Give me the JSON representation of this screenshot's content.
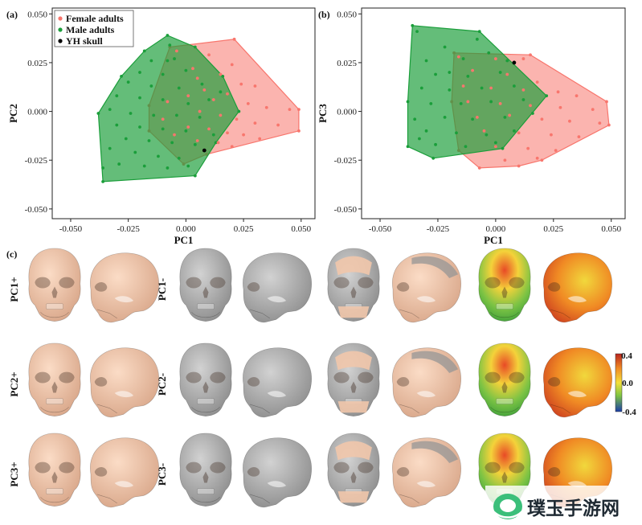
{
  "chart_data": [
    {
      "panel": "(a)",
      "type": "scatter",
      "xlabel": "PC1",
      "ylabel": "PC2",
      "xlim": [
        -0.058,
        0.056
      ],
      "ylim": [
        -0.055,
        0.053
      ],
      "xticks": [
        "-0.050",
        "-0.025",
        "0.000",
        "0.025",
        "0.050"
      ],
      "xtick_values": [
        -0.05,
        -0.025,
        0,
        0.025,
        0.05
      ],
      "yticks": [
        "0.050",
        "0.025",
        "0.000",
        "-0.025",
        "-0.050"
      ],
      "ytick_values": [
        0.05,
        0.025,
        0,
        -0.025,
        -0.05
      ],
      "grid": false,
      "legend": {
        "placement": "top-left",
        "entries": [
          {
            "label": "Female adults",
            "color": "#f8766d"
          },
          {
            "label": "Male adults",
            "color": "#1a9e3a"
          },
          {
            "label": "YH skull",
            "color": "#000000"
          }
        ]
      },
      "series": [
        {
          "group": "female",
          "color": "#f8766d",
          "hull": [
            [
              -0.007,
              0.033
            ],
            [
              0.021,
              0.037
            ],
            [
              0.049,
              0.001
            ],
            [
              0.049,
              -0.01
            ],
            [
              0.009,
              -0.022
            ],
            [
              -0.001,
              -0.027
            ],
            [
              -0.016,
              -0.01
            ],
            [
              -0.016,
              0.003
            ]
          ],
          "points": [
            [
              -0.004,
              0.031
            ],
            [
              0.01,
              0.029
            ],
            [
              0.02,
              0.024
            ],
            [
              0.015,
              0.019
            ],
            [
              0.005,
              0.017
            ],
            [
              0.024,
              0.014
            ],
            [
              0.03,
              0.013
            ],
            [
              0.008,
              0.011
            ],
            [
              0.018,
              0.009
            ],
            [
              0.001,
              0.008
            ],
            [
              0.012,
              0.006
            ],
            [
              0.027,
              0.004
            ],
            [
              0.035,
              0.002
            ],
            [
              0.045,
              0.001
            ],
            [
              0.006,
              0.0
            ],
            [
              0.015,
              -0.002
            ],
            [
              0.022,
              -0.004
            ],
            [
              0.03,
              -0.006
            ],
            [
              0.04,
              -0.007
            ],
            [
              0.001,
              -0.008
            ],
            [
              0.01,
              -0.009
            ],
            [
              0.018,
              -0.011
            ],
            [
              0.025,
              -0.012
            ],
            [
              0.005,
              -0.015
            ],
            [
              0.014,
              -0.016
            ],
            [
              0.02,
              -0.018
            ],
            [
              -0.005,
              -0.012
            ],
            [
              -0.01,
              -0.004
            ],
            [
              -0.008,
              0.005
            ],
            [
              0.003,
              0.022
            ],
            [
              0.032,
              -0.014
            ]
          ]
        },
        {
          "group": "male",
          "color": "#1a9e3a",
          "hull": [
            [
              -0.008,
              0.039
            ],
            [
              0.004,
              0.033
            ],
            [
              0.016,
              0.018
            ],
            [
              0.023,
              0.0
            ],
            [
              0.013,
              -0.016
            ],
            [
              0.004,
              -0.033
            ],
            [
              -0.036,
              -0.036
            ],
            [
              -0.038,
              -0.001
            ],
            [
              -0.028,
              0.018
            ],
            [
              -0.018,
              0.031
            ]
          ],
          "points": [
            [
              -0.007,
              0.034
            ],
            [
              -0.015,
              0.026
            ],
            [
              -0.005,
              0.027
            ],
            [
              -0.02,
              0.02
            ],
            [
              -0.01,
              0.019
            ],
            [
              0.0,
              0.021
            ],
            [
              -0.025,
              0.015
            ],
            [
              -0.015,
              0.013
            ],
            [
              -0.003,
              0.012
            ],
            [
              0.007,
              0.014
            ],
            [
              -0.03,
              0.008
            ],
            [
              -0.02,
              0.007
            ],
            [
              -0.01,
              0.006
            ],
            [
              0.001,
              0.004
            ],
            [
              0.01,
              0.006
            ],
            [
              -0.033,
              0.001
            ],
            [
              -0.024,
              -0.001
            ],
            [
              -0.014,
              -0.002
            ],
            [
              -0.004,
              -0.002
            ],
            [
              0.006,
              -0.003
            ],
            [
              -0.03,
              -0.007
            ],
            [
              -0.02,
              -0.008
            ],
            [
              -0.01,
              -0.009
            ],
            [
              0.0,
              -0.01
            ],
            [
              -0.026,
              -0.014
            ],
            [
              -0.016,
              -0.015
            ],
            [
              -0.006,
              -0.016
            ],
            [
              0.004,
              -0.017
            ],
            [
              -0.033,
              -0.019
            ],
            [
              -0.022,
              -0.021
            ],
            [
              -0.012,
              -0.023
            ],
            [
              -0.003,
              -0.024
            ],
            [
              -0.029,
              -0.027
            ],
            [
              -0.018,
              -0.028
            ],
            [
              -0.008,
              -0.029
            ],
            [
              0.001,
              -0.028
            ],
            [
              -0.036,
              -0.029
            ],
            [
              0.012,
              -0.012
            ],
            [
              0.015,
              0.01
            ],
            [
              -0.008,
              0.026
            ]
          ]
        },
        {
          "group": "yh",
          "color": "#000000",
          "points": [
            [
              0.008,
              -0.02
            ]
          ]
        }
      ]
    },
    {
      "panel": "(b)",
      "type": "scatter",
      "xlabel": "PC1",
      "ylabel": "PC3",
      "xlim": [
        -0.058,
        0.056
      ],
      "ylim": [
        -0.055,
        0.053
      ],
      "xticks": [
        "-0.050",
        "-0.025",
        "0.000",
        "0.025",
        "0.050"
      ],
      "xtick_values": [
        -0.05,
        -0.025,
        0,
        0.025,
        0.05
      ],
      "yticks": [
        "0.050",
        "0.025",
        "0.000",
        "-0.025",
        "-0.050"
      ],
      "ytick_values": [
        0.05,
        0.025,
        0,
        -0.025,
        -0.05
      ],
      "grid": false,
      "series": [
        {
          "group": "female",
          "color": "#f8766d",
          "hull": [
            [
              -0.018,
              0.03
            ],
            [
              0.015,
              0.029
            ],
            [
              0.048,
              0.005
            ],
            [
              0.049,
              -0.007
            ],
            [
              0.02,
              -0.025
            ],
            [
              0.01,
              -0.028
            ],
            [
              -0.007,
              -0.029
            ],
            [
              -0.016,
              -0.02
            ],
            [
              -0.019,
              0.005
            ]
          ],
          "points": [
            [
              -0.016,
              0.028
            ],
            [
              0.0,
              0.027
            ],
            [
              0.012,
              0.027
            ],
            [
              -0.01,
              0.021
            ],
            [
              0.005,
              0.019
            ],
            [
              0.018,
              0.015
            ],
            [
              -0.014,
              0.013
            ],
            [
              -0.002,
              0.012
            ],
            [
              0.012,
              0.011
            ],
            [
              0.027,
              0.01
            ],
            [
              0.035,
              0.008
            ],
            [
              -0.012,
              0.005
            ],
            [
              0.002,
              0.004
            ],
            [
              0.015,
              0.003
            ],
            [
              0.028,
              0.002
            ],
            [
              0.042,
              0.001
            ],
            [
              -0.008,
              -0.003
            ],
            [
              0.006,
              -0.002
            ],
            [
              0.02,
              -0.004
            ],
            [
              0.032,
              -0.005
            ],
            [
              0.045,
              -0.006
            ],
            [
              -0.005,
              -0.01
            ],
            [
              0.01,
              -0.011
            ],
            [
              0.024,
              -0.012
            ],
            [
              0.036,
              -0.013
            ],
            [
              0.0,
              -0.018
            ],
            [
              0.014,
              -0.019
            ],
            [
              0.026,
              -0.02
            ],
            [
              0.004,
              -0.025
            ],
            [
              0.018,
              -0.024
            ]
          ]
        },
        {
          "group": "male",
          "color": "#1a9e3a",
          "hull": [
            [
              -0.036,
              0.044
            ],
            [
              -0.007,
              0.041
            ],
            [
              0.022,
              0.008
            ],
            [
              0.003,
              -0.019
            ],
            [
              -0.027,
              -0.024
            ],
            [
              -0.038,
              -0.018
            ],
            [
              -0.038,
              0.005
            ]
          ],
          "points": [
            [
              -0.034,
              0.041
            ],
            [
              -0.022,
              0.033
            ],
            [
              -0.008,
              0.037
            ],
            [
              -0.03,
              0.026
            ],
            [
              -0.014,
              0.027
            ],
            [
              -0.003,
              0.03
            ],
            [
              -0.026,
              0.019
            ],
            [
              -0.012,
              0.018
            ],
            [
              0.002,
              0.02
            ],
            [
              -0.032,
              0.012
            ],
            [
              -0.02,
              0.011
            ],
            [
              -0.006,
              0.012
            ],
            [
              0.008,
              0.013
            ],
            [
              -0.028,
              0.004
            ],
            [
              -0.015,
              0.004
            ],
            [
              -0.002,
              0.005
            ],
            [
              0.012,
              0.006
            ],
            [
              -0.035,
              -0.004
            ],
            [
              -0.022,
              -0.003
            ],
            [
              -0.01,
              -0.004
            ],
            [
              0.004,
              -0.003
            ],
            [
              0.016,
              -0.001
            ],
            [
              -0.03,
              -0.01
            ],
            [
              -0.017,
              -0.011
            ],
            [
              -0.004,
              -0.012
            ],
            [
              0.008,
              -0.01
            ],
            [
              -0.026,
              -0.017
            ],
            [
              -0.013,
              -0.018
            ],
            [
              0.0,
              -0.016
            ],
            [
              -0.033,
              -0.014
            ],
            [
              -0.02,
              0.02
            ],
            [
              0.005,
              0.026
            ]
          ]
        },
        {
          "group": "yh",
          "color": "#000000",
          "points": [
            [
              0.008,
              0.025
            ]
          ]
        }
      ]
    }
  ],
  "panel_c": {
    "letter": "(c)",
    "rows": [
      {
        "label_left": "PC1+",
        "label_mid": "PC1-"
      },
      {
        "label_left": "PC2+",
        "label_mid": "PC2-"
      },
      {
        "label_left": "PC3+",
        "label_mid": "PC3-"
      }
    ],
    "colors": {
      "skin": "#f1c6ab",
      "grey": "#b7b7b7",
      "dark_grey": "#8f8f8f"
    },
    "colorbar": {
      "max": "0.4",
      "mid": "0.0",
      "min": "-0.4",
      "colors": [
        "#c0261f",
        "#f08a24",
        "#f4e03a",
        "#7fc542",
        "#1b3da8"
      ]
    }
  },
  "watermark": {
    "text": "璞玉手游网",
    "color": "#3bbf7a"
  }
}
